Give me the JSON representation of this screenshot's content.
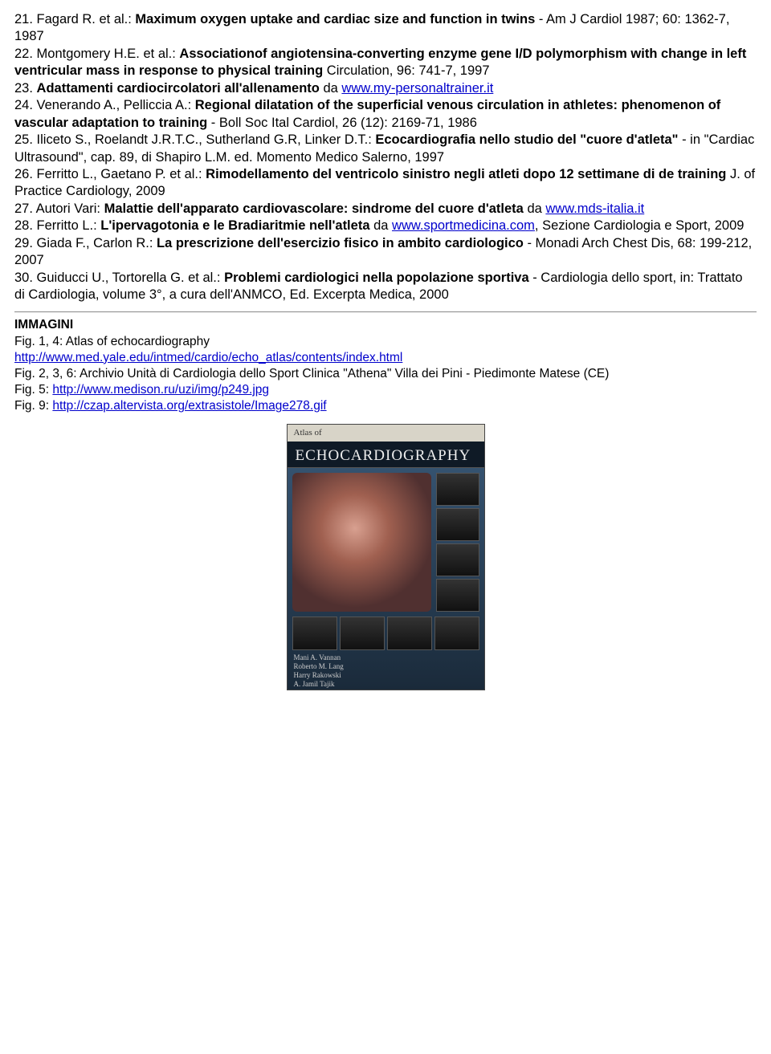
{
  "refs": [
    {
      "num": "21.",
      "pre": "   Fagard R. et al.: ",
      "bold": "Maximum oxygen uptake and cardiac size and function in twins",
      "post": " - Am J Cardiol 1987; 60: 1362-7, 1987"
    },
    {
      "num": "22.",
      "pre": "   Montgomery H.E. et al.: ",
      "bold": "Associationof angiotensina-converting enzyme gene I/D polymorphism with change in left ventricular mass in response to physical training",
      "post": " Circulation, 96: 741-7, 1997"
    },
    {
      "num": "23.",
      "pre": "   ",
      "bold": "Adattamenti cardiocircolatori all'allenamento",
      "post": " da ",
      "link": "www.my-personaltrainer.it"
    },
    {
      "num": "24.",
      "pre": "   Venerando A., Pelliccia A.: ",
      "bold": "Regional dilatation of the superficial venous circulation in athletes: phenomenon of vascular adaptation to training",
      "post": " - Boll Soc Ital Cardiol, 26 (12): 2169-71, 1986"
    },
    {
      "num": "25.",
      "pre": "   Iliceto S., Roelandt J.R.T.C., Sutherland G.R, Linker D.T.: ",
      "bold": "Ecocardiografia nello studio del \"cuore d'atleta\"",
      "post": " - in \"Cardiac Ultrasound\", cap. 89, di Shapiro L.M. ed. Momento Medico Salerno, 1997"
    },
    {
      "num": "26.",
      "pre": "   Ferritto L., Gaetano P. et al.: ",
      "bold": "Rimodellamento del ventricolo sinistro negli atleti dopo 12 settimane di de training",
      "post": " J. of Practice Cardiology, 2009"
    },
    {
      "num": "27.",
      "pre": "   Autori Vari: ",
      "bold": "Malattie dell'apparato cardiovascolare: sindrome del cuore d'atleta",
      "post": " da ",
      "link": "www.mds-italia.it"
    },
    {
      "num": "28.",
      "pre": "   Ferritto L.: ",
      "bold": "L'ipervagotonia e le Bradiaritmie nell'atleta",
      "post": " da ",
      "link": "www.sportmedicina.com",
      "post2": ", Sezione Cardiologia e Sport, 2009"
    },
    {
      "num": "29.",
      "pre": "   Giada F., Carlon R.: ",
      "bold": "La prescrizione dell'esercizio fisico in ambito cardiologico",
      "post": " - Monadi Arch Chest Dis, 68: 199-212, 2007"
    },
    {
      "num": "30.",
      "pre": "   Guiducci U., Tortorella G. et al.: ",
      "bold": "Problemi cardiologici nella popolazione sportiva",
      "post": " - Cardiologia dello sport, in: Trattato di Cardiologia, volume 3°, a cura dell'ANMCO, Ed. Excerpta Medica, 2000"
    }
  ],
  "images": {
    "header": "IMMAGINI",
    "lines": [
      {
        "text": "Fig. 1, 4: Atlas of echocardiography"
      },
      {
        "link": "http://www.med.yale.edu/intmed/cardio/echo_atlas/contents/index.html"
      },
      {
        "text": "Fig. 2, 3, 6: Archivio Unità di Cardiologia dello Sport Clinica \"Athena\" Villa dei Pini - Piedimonte Matese (CE)"
      },
      {
        "text": "Fig. 5: ",
        "link": "http://www.medison.ru/uzi/img/p249.jpg"
      },
      {
        "text": "Fig. 9: ",
        "link": "http://czap.altervista.org/extrasistole/Image278.gif"
      }
    ]
  },
  "book": {
    "topbar": "Atlas of",
    "title": "ECHOCARDIOGRAPHY",
    "authors": "Mani A. Vannan\nRoberto M. Lang\nHarry Rakowski\nA. Jamil Tajik"
  }
}
